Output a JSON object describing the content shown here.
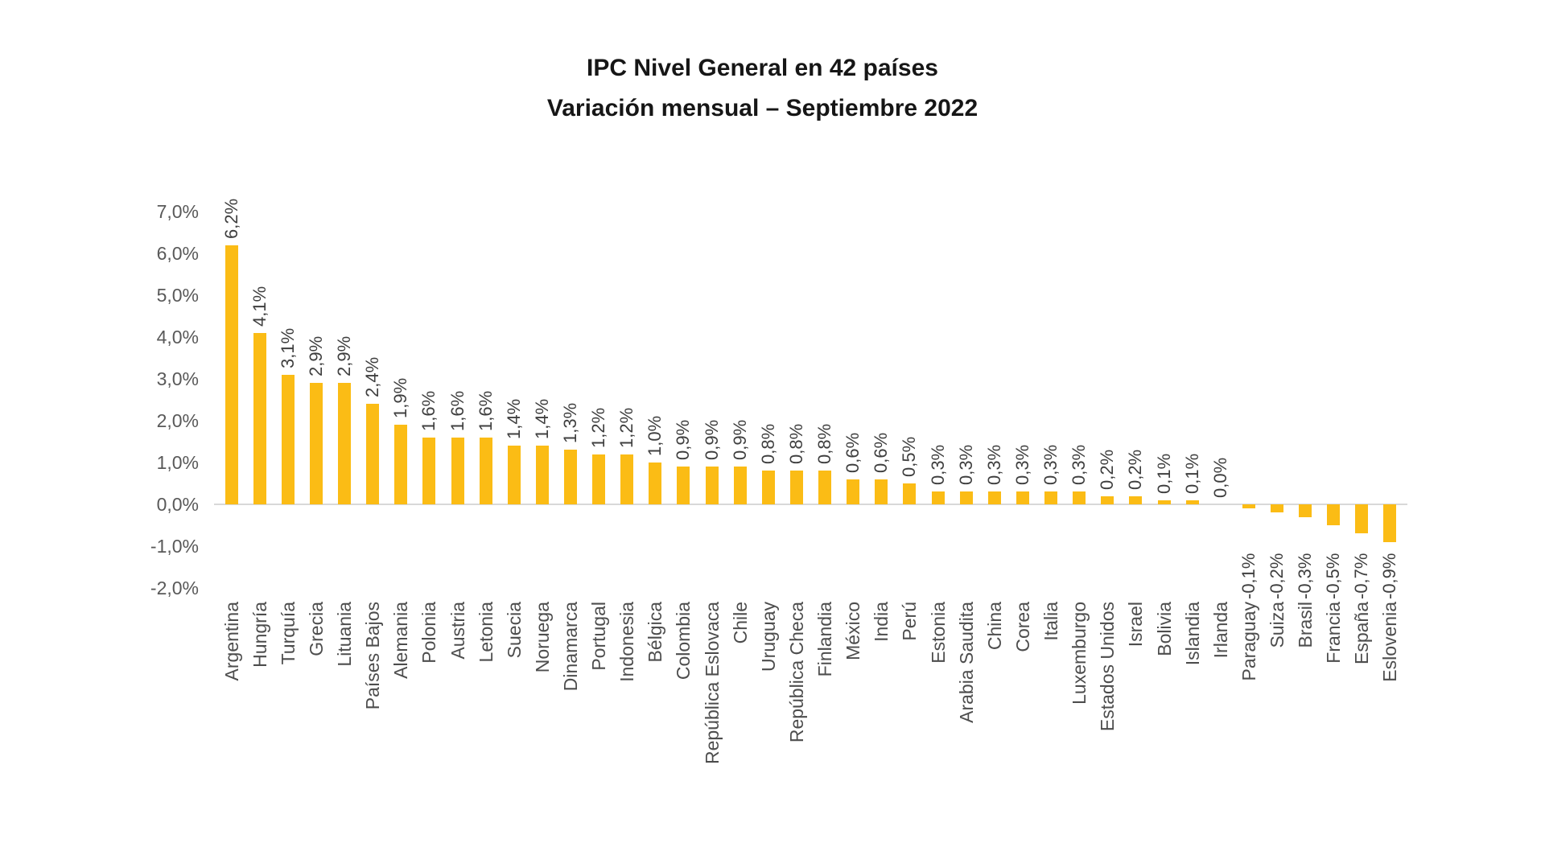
{
  "chart_data": {
    "type": "bar",
    "title": "IPC Nivel General en 42 países",
    "subtitle": "Variación mensual – Septiembre 2022",
    "xlabel": "",
    "ylabel": "",
    "ylim": [
      -2.0,
      7.0
    ],
    "grid": false,
    "legend": "none",
    "bar_color": "#fbbc15",
    "axis_label_color": "#595959",
    "value_label_color": "#3f3f3f",
    "category_label_color": "#4d4d4d",
    "y_tick_labels": [
      "7,0%",
      "6,0%",
      "5,0%",
      "4,0%",
      "3,0%",
      "2,0%",
      "1,0%",
      "0,0%",
      "-1,0%",
      "-2,0%"
    ],
    "y_tick_values": [
      7,
      6,
      5,
      4,
      3,
      2,
      1,
      0,
      -1,
      -2
    ],
    "categories": [
      "Argentina",
      "Hungría",
      "Turquía",
      "Grecia",
      "Lituania",
      "Países Bajos",
      "Alemania",
      "Polonia",
      "Austria",
      "Letonia",
      "Suecia",
      "Noruega",
      "Dinamarca",
      "Portugal",
      "Indonesia",
      "Bélgica",
      "Colombia",
      "República Eslovaca",
      "Chile",
      "Uruguay",
      "República Checa",
      "Finlandia",
      "México",
      "India",
      "Perú",
      "Estonia",
      "Arabia Saudita",
      "China",
      "Corea",
      "Italia",
      "Luxemburgo",
      "Estados Unidos",
      "Israel",
      "Bolivia",
      "Islandia",
      "Irlanda",
      "Paraguay",
      "Suiza",
      "Brasil",
      "Francia",
      "España",
      "Eslovenia"
    ],
    "values": [
      6.2,
      4.1,
      3.1,
      2.9,
      2.9,
      2.4,
      1.9,
      1.6,
      1.6,
      1.6,
      1.4,
      1.4,
      1.3,
      1.2,
      1.2,
      1.0,
      0.9,
      0.9,
      0.9,
      0.8,
      0.8,
      0.8,
      0.6,
      0.6,
      0.5,
      0.3,
      0.3,
      0.3,
      0.3,
      0.3,
      0.3,
      0.2,
      0.2,
      0.1,
      0.1,
      0.0,
      -0.1,
      -0.2,
      -0.3,
      -0.5,
      -0.7,
      -0.9
    ],
    "value_labels": [
      "6,2%",
      "4,1%",
      "3,1%",
      "2,9%",
      "2,9%",
      "2,4%",
      "1,9%",
      "1,6%",
      "1,6%",
      "1,6%",
      "1,4%",
      "1,4%",
      "1,3%",
      "1,2%",
      "1,2%",
      "1,0%",
      "0,9%",
      "0,9%",
      "0,9%",
      "0,8%",
      "0,8%",
      "0,8%",
      "0,6%",
      "0,6%",
      "0,5%",
      "0,3%",
      "0,3%",
      "0,3%",
      "0,3%",
      "0,3%",
      "0,3%",
      "0,2%",
      "0,2%",
      "0,1%",
      "0,1%",
      "0,0%",
      "-0,1%",
      "-0,2%",
      "-0,3%",
      "-0,5%",
      "-0,7%",
      "-0,9%"
    ]
  }
}
